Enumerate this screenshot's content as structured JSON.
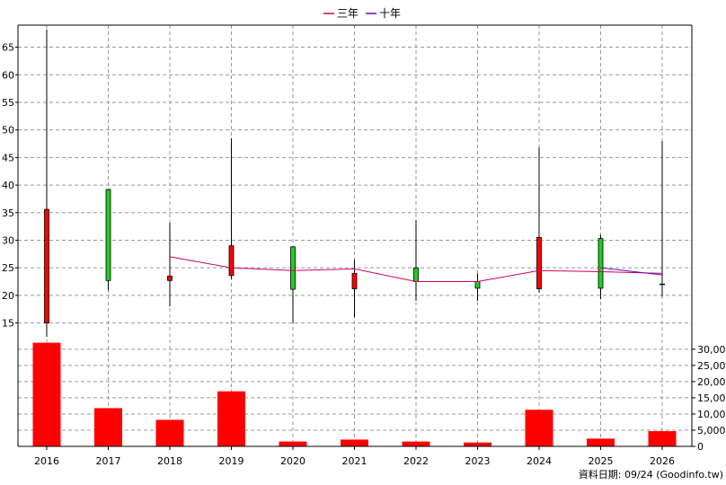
{
  "legend": [
    {
      "label": "三年",
      "color": "#cc0066"
    },
    {
      "label": "十年",
      "color": "#6a0dad"
    }
  ],
  "footer": "資料日期: 09/24   (Goodinfo.tw)",
  "chart_data": [
    {
      "type": "candlestick",
      "categories": [
        "2016",
        "2017",
        "2018",
        "2019",
        "2020",
        "2021",
        "2022",
        "2023",
        "2024",
        "2025",
        "2026"
      ],
      "ylim": [
        12,
        69
      ],
      "yticks": [
        15,
        20,
        25,
        30,
        35,
        40,
        45,
        50,
        55,
        60,
        65
      ],
      "grid": true,
      "candles": [
        {
          "open": 15.0,
          "close": 35.6,
          "high": 68.2,
          "low": 12.5,
          "color": "#ff0000"
        },
        {
          "open": 39.2,
          "close": 22.7,
          "high": 39.3,
          "low": 20.9,
          "color": "#22cc22"
        },
        {
          "open": 22.7,
          "close": 23.5,
          "high": 33.2,
          "low": 18.0,
          "color": "#ff0000"
        },
        {
          "open": 23.6,
          "close": 29.0,
          "high": 48.5,
          "low": 23.0,
          "color": "#ff0000"
        },
        {
          "open": 28.8,
          "close": 21.1,
          "high": 28.9,
          "low": 15.0,
          "color": "#22cc22"
        },
        {
          "open": 21.2,
          "close": 24.0,
          "high": 26.5,
          "low": 16.0,
          "color": "#ff0000"
        },
        {
          "open": 25.0,
          "close": 22.5,
          "high": 33.7,
          "low": 19.0,
          "color": "#22cc22"
        },
        {
          "open": 22.5,
          "close": 21.3,
          "high": 24.0,
          "low": 19.0,
          "color": "#22cc22"
        },
        {
          "open": 21.2,
          "close": 30.5,
          "high": 46.8,
          "low": 20.5,
          "color": "#ff0000"
        },
        {
          "open": 30.3,
          "close": 21.3,
          "high": 31.0,
          "low": 19.3,
          "color": "#22cc22"
        },
        {
          "open": 22.0,
          "close": 22.0,
          "high": 48.0,
          "low": 19.8,
          "color": "#000000"
        }
      ],
      "series": [
        {
          "name": "三年",
          "color": "#cc0066",
          "values": [
            null,
            null,
            27.0,
            25.0,
            24.5,
            24.8,
            22.5,
            22.5,
            24.5,
            24.3,
            24.0
          ]
        },
        {
          "name": "十年",
          "color": "#6a0dad",
          "values": [
            null,
            null,
            null,
            null,
            null,
            null,
            null,
            null,
            null,
            25.0,
            23.7
          ]
        }
      ]
    },
    {
      "type": "bar",
      "categories": [
        "2016",
        "2017",
        "2018",
        "2019",
        "2020",
        "2021",
        "2022",
        "2023",
        "2024",
        "2025",
        "2026"
      ],
      "values": [
        32000,
        11800,
        8200,
        17000,
        1500,
        2100,
        1500,
        1200,
        11300,
        2400,
        4700
      ],
      "color": "#ff0000",
      "ylim": [
        0,
        33000
      ],
      "yticks": [
        0,
        5000,
        10000,
        15000,
        20000,
        25000,
        30000
      ],
      "ytick_labels": [
        "0",
        "5,000",
        "10,000",
        "15,000",
        "20,000",
        "25,000",
        "30,000"
      ]
    }
  ]
}
